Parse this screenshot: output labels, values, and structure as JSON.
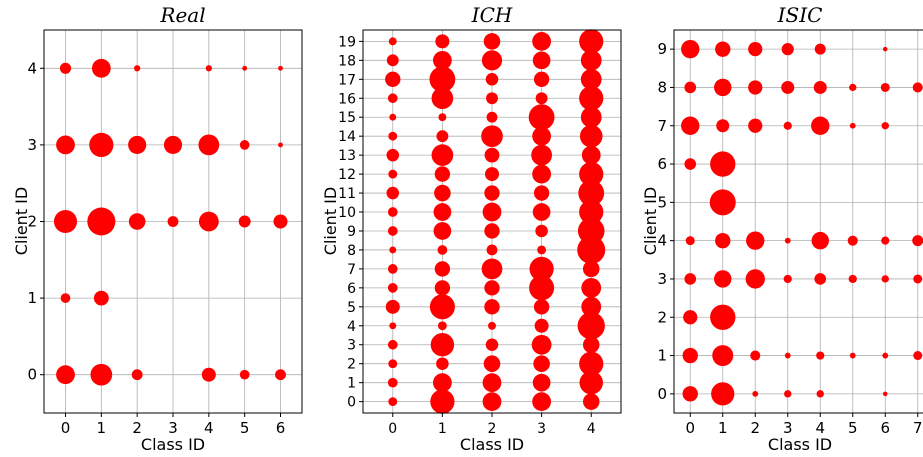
{
  "chart_data": [
    {
      "type": "scatter",
      "title": "Real",
      "xlabel": "Class ID",
      "ylabel": "Client ID",
      "x_ticks": [
        0,
        1,
        2,
        3,
        4,
        5,
        6
      ],
      "y_ticks": [
        0,
        1,
        2,
        3,
        4
      ],
      "xlim": [
        -0.6,
        6.6
      ],
      "ylim": [
        -0.5,
        4.5
      ],
      "grid": true,
      "marker_color": "#ff0000",
      "size_encoding": "relative sample count (0-1)",
      "points": [
        {
          "client": 4,
          "cls": 0,
          "size": 0.16
        },
        {
          "client": 4,
          "cls": 1,
          "size": 0.45
        },
        {
          "client": 4,
          "cls": 2,
          "size": 0.05
        },
        {
          "client": 4,
          "cls": 4,
          "size": 0.05
        },
        {
          "client": 4,
          "cls": 5,
          "size": 0.03
        },
        {
          "client": 4,
          "cls": 6,
          "size": 0.03
        },
        {
          "client": 3,
          "cls": 0,
          "size": 0.45
        },
        {
          "client": 3,
          "cls": 1,
          "size": 0.75
        },
        {
          "client": 3,
          "cls": 2,
          "size": 0.42
        },
        {
          "client": 3,
          "cls": 3,
          "size": 0.42
        },
        {
          "client": 3,
          "cls": 4,
          "size": 0.55
        },
        {
          "client": 3,
          "cls": 5,
          "size": 0.12
        },
        {
          "client": 3,
          "cls": 6,
          "size": 0.03
        },
        {
          "client": 2,
          "cls": 0,
          "size": 0.68
        },
        {
          "client": 2,
          "cls": 1,
          "size": 1.0
        },
        {
          "client": 2,
          "cls": 2,
          "size": 0.35
        },
        {
          "client": 2,
          "cls": 3,
          "size": 0.15
        },
        {
          "client": 2,
          "cls": 4,
          "size": 0.5
        },
        {
          "client": 2,
          "cls": 5,
          "size": 0.18
        },
        {
          "client": 2,
          "cls": 6,
          "size": 0.25
        },
        {
          "client": 1,
          "cls": 0,
          "size": 0.12
        },
        {
          "client": 1,
          "cls": 1,
          "size": 0.28
        },
        {
          "client": 0,
          "cls": 0,
          "size": 0.45
        },
        {
          "client": 0,
          "cls": 1,
          "size": 0.6
        },
        {
          "client": 0,
          "cls": 2,
          "size": 0.15
        },
        {
          "client": 0,
          "cls": 4,
          "size": 0.25
        },
        {
          "client": 0,
          "cls": 5,
          "size": 0.12
        },
        {
          "client": 0,
          "cls": 6,
          "size": 0.15
        }
      ]
    },
    {
      "type": "scatter",
      "title": "ICH",
      "xlabel": "Class ID",
      "ylabel": "Client ID",
      "x_ticks": [
        0,
        1,
        2,
        3,
        4
      ],
      "y_ticks": [
        0,
        1,
        2,
        3,
        4,
        5,
        6,
        7,
        8,
        9,
        10,
        11,
        12,
        13,
        14,
        15,
        16,
        17,
        18,
        19
      ],
      "xlim": [
        -0.6,
        4.6
      ],
      "ylim": [
        -0.6,
        19.6
      ],
      "grid": true,
      "marker_color": "#ff0000",
      "size_encoding": "relative sample count (0-1)",
      "points": [
        {
          "client": 19,
          "cls": 0,
          "size": 0.08
        },
        {
          "client": 19,
          "cls": 1,
          "size": 0.25
        },
        {
          "client": 19,
          "cls": 2,
          "size": 0.35
        },
        {
          "client": 19,
          "cls": 3,
          "size": 0.45
        },
        {
          "client": 19,
          "cls": 4,
          "size": 0.75
        },
        {
          "client": 18,
          "cls": 0,
          "size": 0.18
        },
        {
          "client": 18,
          "cls": 1,
          "size": 0.45
        },
        {
          "client": 18,
          "cls": 2,
          "size": 0.52
        },
        {
          "client": 18,
          "cls": 3,
          "size": 0.4
        },
        {
          "client": 18,
          "cls": 4,
          "size": 0.55
        },
        {
          "client": 17,
          "cls": 0,
          "size": 0.3
        },
        {
          "client": 17,
          "cls": 1,
          "size": 0.85
        },
        {
          "client": 17,
          "cls": 2,
          "size": 0.2
        },
        {
          "client": 17,
          "cls": 3,
          "size": 0.3
        },
        {
          "client": 17,
          "cls": 4,
          "size": 0.55
        },
        {
          "client": 16,
          "cls": 0,
          "size": 0.12
        },
        {
          "client": 16,
          "cls": 1,
          "size": 0.6
        },
        {
          "client": 16,
          "cls": 2,
          "size": 0.18
        },
        {
          "client": 16,
          "cls": 3,
          "size": 0.18
        },
        {
          "client": 16,
          "cls": 4,
          "size": 0.75
        },
        {
          "client": 15,
          "cls": 0,
          "size": 0.06
        },
        {
          "client": 15,
          "cls": 1,
          "size": 0.08
        },
        {
          "client": 15,
          "cls": 2,
          "size": 0.15
        },
        {
          "client": 15,
          "cls": 3,
          "size": 0.85
        },
        {
          "client": 15,
          "cls": 4,
          "size": 0.55
        },
        {
          "client": 14,
          "cls": 0,
          "size": 0.1
        },
        {
          "client": 14,
          "cls": 1,
          "size": 0.18
        },
        {
          "client": 14,
          "cls": 2,
          "size": 0.6
        },
        {
          "client": 14,
          "cls": 3,
          "size": 0.45
        },
        {
          "client": 14,
          "cls": 4,
          "size": 0.65
        },
        {
          "client": 13,
          "cls": 0,
          "size": 0.2
        },
        {
          "client": 13,
          "cls": 1,
          "size": 0.6
        },
        {
          "client": 13,
          "cls": 2,
          "size": 0.28
        },
        {
          "client": 13,
          "cls": 3,
          "size": 0.55
        },
        {
          "client": 13,
          "cls": 4,
          "size": 0.45
        },
        {
          "client": 12,
          "cls": 0,
          "size": 0.1
        },
        {
          "client": 12,
          "cls": 1,
          "size": 0.3
        },
        {
          "client": 12,
          "cls": 2,
          "size": 0.25
        },
        {
          "client": 12,
          "cls": 3,
          "size": 0.45
        },
        {
          "client": 12,
          "cls": 4,
          "size": 0.75
        },
        {
          "client": 11,
          "cls": 0,
          "size": 0.2
        },
        {
          "client": 11,
          "cls": 1,
          "size": 0.35
        },
        {
          "client": 11,
          "cls": 2,
          "size": 0.3
        },
        {
          "client": 11,
          "cls": 3,
          "size": 0.3
        },
        {
          "client": 11,
          "cls": 4,
          "size": 0.85
        },
        {
          "client": 10,
          "cls": 0,
          "size": 0.12
        },
        {
          "client": 10,
          "cls": 1,
          "size": 0.4
        },
        {
          "client": 10,
          "cls": 2,
          "size": 0.45
        },
        {
          "client": 10,
          "cls": 3,
          "size": 0.4
        },
        {
          "client": 10,
          "cls": 4,
          "size": 0.75
        },
        {
          "client": 9,
          "cls": 0,
          "size": 0.12
        },
        {
          "client": 9,
          "cls": 1,
          "size": 0.4
        },
        {
          "client": 9,
          "cls": 2,
          "size": 0.3
        },
        {
          "client": 9,
          "cls": 3,
          "size": 0.2
        },
        {
          "client": 9,
          "cls": 4,
          "size": 0.9
        },
        {
          "client": 8,
          "cls": 0,
          "size": 0.06
        },
        {
          "client": 8,
          "cls": 1,
          "size": 0.12
        },
        {
          "client": 8,
          "cls": 2,
          "size": 0.15
        },
        {
          "client": 8,
          "cls": 3,
          "size": 0.1
        },
        {
          "client": 8,
          "cls": 4,
          "size": 1.0
        },
        {
          "client": 7,
          "cls": 0,
          "size": 0.12
        },
        {
          "client": 7,
          "cls": 1,
          "size": 0.3
        },
        {
          "client": 7,
          "cls": 2,
          "size": 0.55
        },
        {
          "client": 7,
          "cls": 3,
          "size": 0.75
        },
        {
          "client": 7,
          "cls": 4,
          "size": 0.35
        },
        {
          "client": 6,
          "cls": 0,
          "size": 0.12
        },
        {
          "client": 6,
          "cls": 1,
          "size": 0.3
        },
        {
          "client": 6,
          "cls": 2,
          "size": 0.3
        },
        {
          "client": 6,
          "cls": 3,
          "size": 0.8
        },
        {
          "client": 6,
          "cls": 4,
          "size": 0.5
        },
        {
          "client": 5,
          "cls": 0,
          "size": 0.25
        },
        {
          "client": 5,
          "cls": 1,
          "size": 0.8
        },
        {
          "client": 5,
          "cls": 2,
          "size": 0.3
        },
        {
          "client": 5,
          "cls": 3,
          "size": 0.3
        },
        {
          "client": 5,
          "cls": 4,
          "size": 0.5
        },
        {
          "client": 4,
          "cls": 0,
          "size": 0.06
        },
        {
          "client": 4,
          "cls": 1,
          "size": 0.1
        },
        {
          "client": 4,
          "cls": 2,
          "size": 0.08
        },
        {
          "client": 4,
          "cls": 3,
          "size": 0.25
        },
        {
          "client": 4,
          "cls": 4,
          "size": 0.95
        },
        {
          "client": 3,
          "cls": 0,
          "size": 0.12
        },
        {
          "client": 3,
          "cls": 1,
          "size": 0.7
        },
        {
          "client": 3,
          "cls": 2,
          "size": 0.2
        },
        {
          "client": 3,
          "cls": 3,
          "size": 0.5
        },
        {
          "client": 3,
          "cls": 4,
          "size": 0.35
        },
        {
          "client": 2,
          "cls": 0,
          "size": 0.1
        },
        {
          "client": 2,
          "cls": 1,
          "size": 0.2
        },
        {
          "client": 2,
          "cls": 2,
          "size": 0.35
        },
        {
          "client": 2,
          "cls": 3,
          "size": 0.35
        },
        {
          "client": 2,
          "cls": 4,
          "size": 0.75
        },
        {
          "client": 1,
          "cls": 0,
          "size": 0.12
        },
        {
          "client": 1,
          "cls": 1,
          "size": 0.45
        },
        {
          "client": 1,
          "cls": 2,
          "size": 0.45
        },
        {
          "client": 1,
          "cls": 3,
          "size": 0.4
        },
        {
          "client": 1,
          "cls": 4,
          "size": 0.7
        },
        {
          "client": 0,
          "cls": 0,
          "size": 0.1
        },
        {
          "client": 0,
          "cls": 1,
          "size": 0.75
        },
        {
          "client": 0,
          "cls": 2,
          "size": 0.45
        },
        {
          "client": 0,
          "cls": 3,
          "size": 0.45
        },
        {
          "client": 0,
          "cls": 4,
          "size": 0.35
        }
      ]
    },
    {
      "type": "scatter",
      "title": "ISIC",
      "xlabel": "Class ID",
      "ylabel": "Client ID",
      "x_ticks": [
        0,
        1,
        2,
        3,
        4,
        5,
        6,
        7
      ],
      "y_ticks": [
        0,
        1,
        2,
        3,
        4,
        5,
        6,
        7,
        8,
        9
      ],
      "xlim": [
        -0.5,
        7.5
      ],
      "ylim": [
        -0.5,
        9.5
      ],
      "grid": true,
      "marker_color": "#ff0000",
      "size_encoding": "relative sample count (0-1)",
      "points": [
        {
          "client": 9,
          "cls": 0,
          "size": 0.5
        },
        {
          "client": 9,
          "cls": 1,
          "size": 0.35
        },
        {
          "client": 9,
          "cls": 2,
          "size": 0.3
        },
        {
          "client": 9,
          "cls": 3,
          "size": 0.22
        },
        {
          "client": 9,
          "cls": 4,
          "size": 0.18
        },
        {
          "client": 9,
          "cls": 6,
          "size": 0.03
        },
        {
          "client": 8,
          "cls": 0,
          "size": 0.2
        },
        {
          "client": 8,
          "cls": 1,
          "size": 0.45
        },
        {
          "client": 8,
          "cls": 2,
          "size": 0.3
        },
        {
          "client": 8,
          "cls": 3,
          "size": 0.25
        },
        {
          "client": 8,
          "cls": 4,
          "size": 0.25
        },
        {
          "client": 8,
          "cls": 5,
          "size": 0.08
        },
        {
          "client": 8,
          "cls": 6,
          "size": 0.12
        },
        {
          "client": 8,
          "cls": 7,
          "size": 0.15
        },
        {
          "client": 7,
          "cls": 0,
          "size": 0.5
        },
        {
          "client": 7,
          "cls": 1,
          "size": 0.25
        },
        {
          "client": 7,
          "cls": 2,
          "size": 0.3
        },
        {
          "client": 7,
          "cls": 3,
          "size": 0.1
        },
        {
          "client": 7,
          "cls": 4,
          "size": 0.5
        },
        {
          "client": 7,
          "cls": 5,
          "size": 0.05
        },
        {
          "client": 7,
          "cls": 6,
          "size": 0.08
        },
        {
          "client": 6,
          "cls": 0,
          "size": 0.2
        },
        {
          "client": 6,
          "cls": 1,
          "size": 0.95
        },
        {
          "client": 5,
          "cls": 1,
          "size": 1.0
        },
        {
          "client": 4,
          "cls": 0,
          "size": 0.12
        },
        {
          "client": 4,
          "cls": 1,
          "size": 0.35
        },
        {
          "client": 4,
          "cls": 2,
          "size": 0.5
        },
        {
          "client": 4,
          "cls": 3,
          "size": 0.05
        },
        {
          "client": 4,
          "cls": 4,
          "size": 0.45
        },
        {
          "client": 4,
          "cls": 5,
          "size": 0.15
        },
        {
          "client": 4,
          "cls": 6,
          "size": 0.1
        },
        {
          "client": 4,
          "cls": 7,
          "size": 0.18
        },
        {
          "client": 3,
          "cls": 0,
          "size": 0.2
        },
        {
          "client": 3,
          "cls": 1,
          "size": 0.45
        },
        {
          "client": 3,
          "cls": 2,
          "size": 0.55
        },
        {
          "client": 3,
          "cls": 3,
          "size": 0.1
        },
        {
          "client": 3,
          "cls": 4,
          "size": 0.2
        },
        {
          "client": 3,
          "cls": 5,
          "size": 0.1
        },
        {
          "client": 3,
          "cls": 6,
          "size": 0.08
        },
        {
          "client": 3,
          "cls": 7,
          "size": 0.12
        },
        {
          "client": 2,
          "cls": 0,
          "size": 0.3
        },
        {
          "client": 2,
          "cls": 1,
          "size": 0.95
        },
        {
          "client": 1,
          "cls": 0,
          "size": 0.35
        },
        {
          "client": 1,
          "cls": 1,
          "size": 0.65
        },
        {
          "client": 1,
          "cls": 2,
          "size": 0.15
        },
        {
          "client": 1,
          "cls": 3,
          "size": 0.05
        },
        {
          "client": 1,
          "cls": 4,
          "size": 0.1
        },
        {
          "client": 1,
          "cls": 5,
          "size": 0.05
        },
        {
          "client": 1,
          "cls": 6,
          "size": 0.05
        },
        {
          "client": 1,
          "cls": 7,
          "size": 0.12
        },
        {
          "client": 0,
          "cls": 0,
          "size": 0.35
        },
        {
          "client": 0,
          "cls": 1,
          "size": 0.8
        },
        {
          "client": 0,
          "cls": 2,
          "size": 0.05
        },
        {
          "client": 0,
          "cls": 3,
          "size": 0.08
        },
        {
          "client": 0,
          "cls": 4,
          "size": 0.08
        },
        {
          "client": 0,
          "cls": 6,
          "size": 0.03
        }
      ]
    }
  ]
}
